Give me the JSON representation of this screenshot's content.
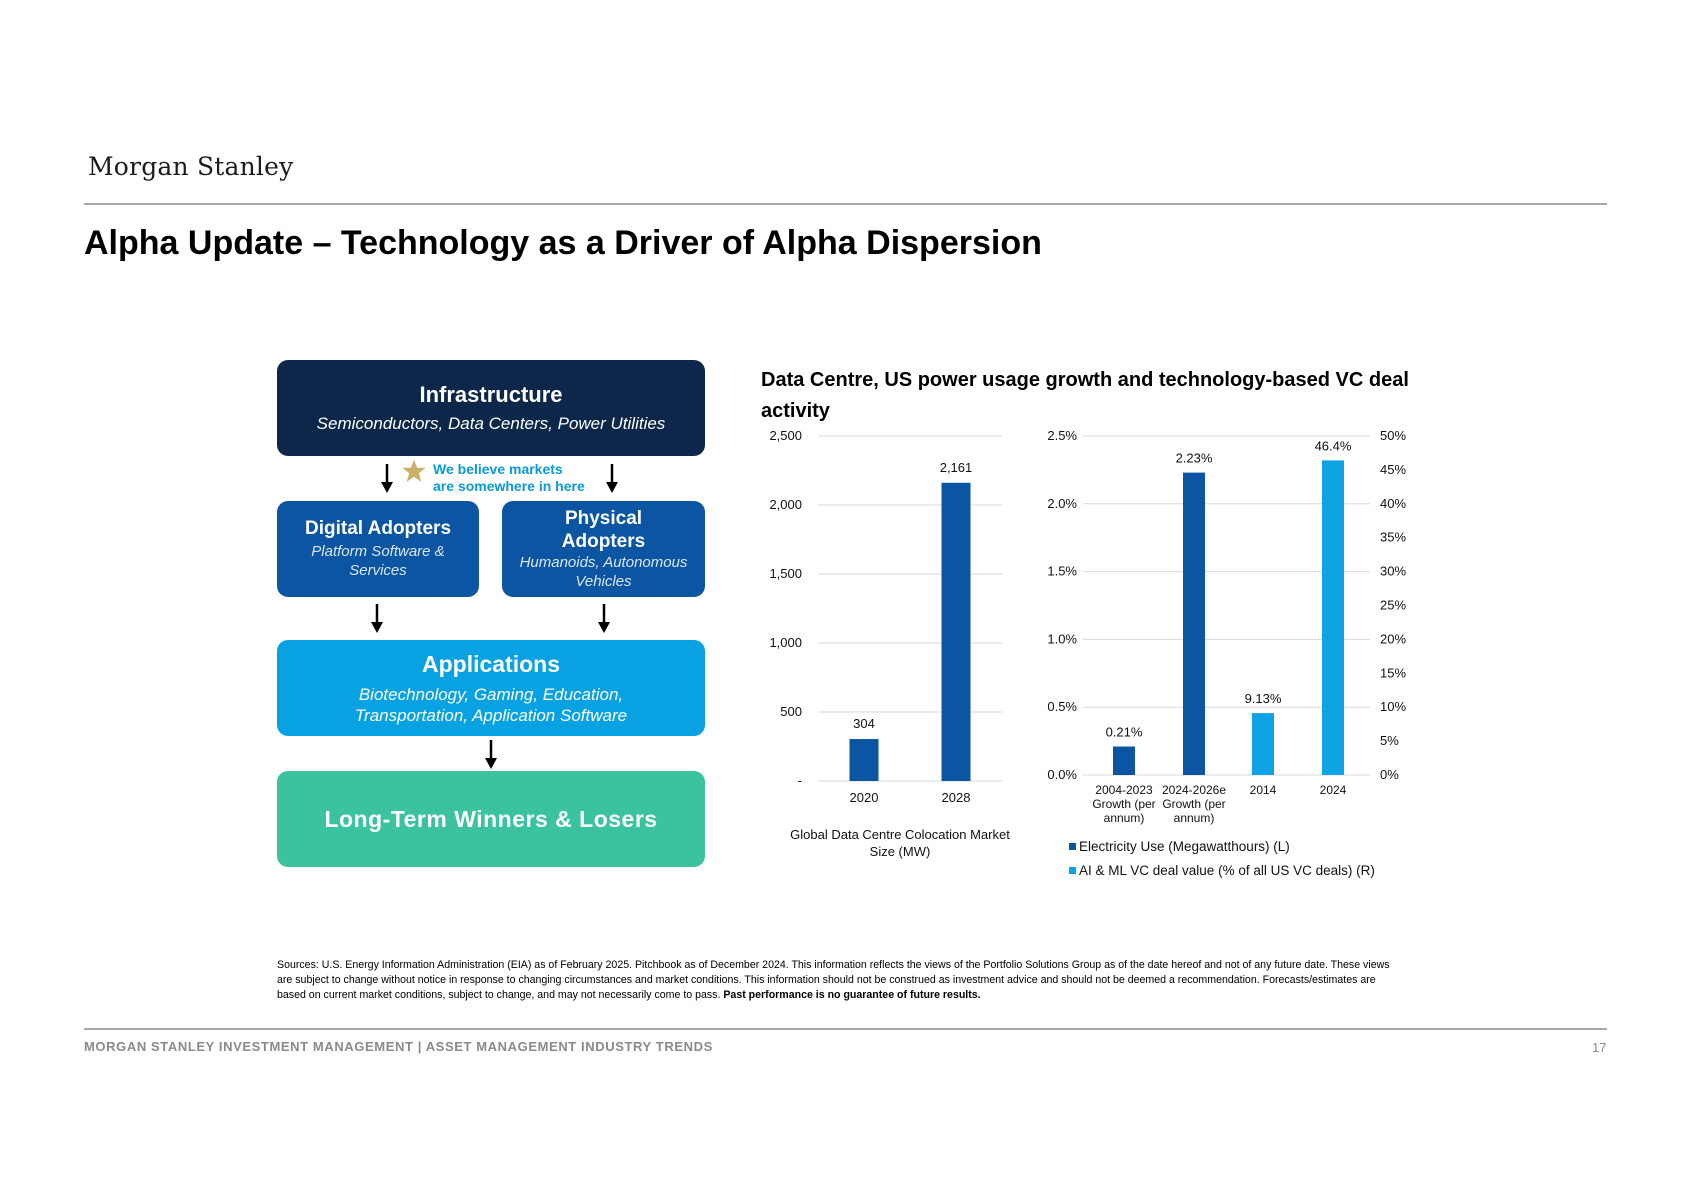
{
  "header": {
    "logo": "Morgan Stanley",
    "title": "Alpha Update – Technology as a Driver of Alpha Dispersion"
  },
  "diagram": {
    "infrastructure": {
      "title": "Infrastructure",
      "subtitle": "Semiconductors, Data Centers, Power Utilities"
    },
    "note": {
      "line1": "We believe markets",
      "line2": "are somewhere in here"
    },
    "digital": {
      "title": "Digital Adopters",
      "subtitle": "Platform Software & Services"
    },
    "physical": {
      "title": "Physical Adopters",
      "subtitle": "Humanoids, Autonomous Vehicles"
    },
    "applications": {
      "title": "Applications",
      "subtitle": "Biotechnology, Gaming, Education, Transportation, Application Software"
    },
    "winners": {
      "title": "Long-Term Winners & Losers"
    },
    "colors": {
      "infrastructure": "#0c2749",
      "adopters": "#0b55a3",
      "applications": "#08a2e3",
      "winners": "#3bc3a0",
      "star": "#c9b06a",
      "note": "#0a9ad6"
    }
  },
  "chart_title": "Data Centre, US power usage growth and technology-based VC deal activity",
  "chart_data": [
    {
      "type": "bar",
      "categories": [
        "2020",
        "2028"
      ],
      "values": [
        304,
        2161
      ],
      "data_labels": [
        "304",
        "2,161"
      ],
      "xlabel": "Global Data Centre Colocation Market Size (MW)",
      "ylim": [
        0,
        2500
      ],
      "yticks": [
        "-",
        "500",
        "1,000",
        "1,500",
        "2,000",
        "2,500"
      ],
      "grid": true,
      "color": "#0b55a3"
    },
    {
      "type": "bar",
      "categories": [
        "2004-2023 Growth (per annum)",
        "2024-2026e Growth (per annum)",
        "2014",
        "2024"
      ],
      "category_lines": [
        [
          "2004-2023",
          "Growth (per",
          "annum)"
        ],
        [
          "2024-2026e",
          "Growth (per",
          "annum)"
        ],
        [
          "2014"
        ],
        [
          "2024"
        ]
      ],
      "series": [
        {
          "name": "Electricity Use (Megawatthours) (L)",
          "axis": "left",
          "color": "#0b55a3",
          "points": [
            {
              "category": "2004-2023 Growth (per annum)",
              "value": 0.21,
              "label": "0.21%"
            },
            {
              "category": "2024-2026e Growth (per annum)",
              "value": 2.23,
              "label": "2.23%"
            }
          ]
        },
        {
          "name": "AI & ML VC deal value (% of all US VC deals) (R)",
          "axis": "right",
          "color": "#0ea3e4",
          "points": [
            {
              "category": "2014",
              "value": 9.13,
              "label": "9.13%"
            },
            {
              "category": "2024",
              "value": 46.4,
              "label": "46.4%"
            }
          ]
        }
      ],
      "ylim_left": [
        0,
        2.5
      ],
      "yticks_left": [
        "0.0%",
        "0.5%",
        "1.0%",
        "1.5%",
        "2.0%",
        "2.5%"
      ],
      "ylim_right": [
        0,
        50
      ],
      "yticks_right": [
        "0%",
        "5%",
        "10%",
        "15%",
        "20%",
        "25%",
        "30%",
        "35%",
        "40%",
        "45%",
        "50%"
      ],
      "grid": true,
      "legend_position": "bottom"
    }
  ],
  "sources": {
    "text": "Sources: U.S. Energy Information Administration (EIA) as of February 2025. Pitchbook as of December 2024. This information reflects the views of the Portfolio Solutions Group as of the date hereof and not of any future date. These views are subject to change without notice in response to changing circumstances and market conditions. This information should not be construed as investment advice and should not be deemed a recommendation. Forecasts/estimates are based on current market conditions, subject to change, and may not necessarily come to pass. ",
    "bold": "Past performance is no guarantee of future results."
  },
  "footer": {
    "text": "MORGAN STANLEY INVESTMENT MANAGEMENT | ASSET MANAGEMENT INDUSTRY TRENDS",
    "page": "17"
  }
}
